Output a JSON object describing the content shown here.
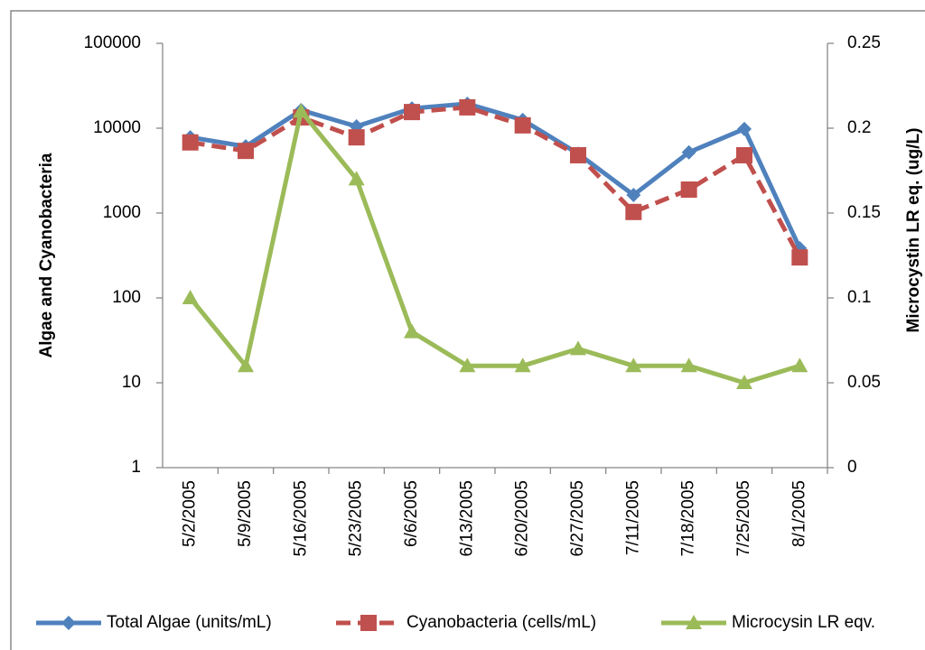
{
  "chart_data": {
    "type": "line",
    "y_label": "Algae and Cyanobacteria",
    "y2_label": "Microcystin LR eq. (ug/L)",
    "categories": [
      "5/2/2005",
      "5/9/2005",
      "5/16/2005",
      "5/23/2005",
      "6/6/2005",
      "6/13/2005",
      "6/20/2005",
      "6/27/2005",
      "7/11/2005",
      "7/18/2005",
      "7/25/2005",
      "8/1/2005"
    ],
    "series": [
      {
        "name": "Total Algae (units/mL)",
        "color": "#4f81bd",
        "marker": "diamond",
        "dash": false,
        "values": [
          7800,
          6100,
          16300,
          10500,
          17100,
          19400,
          12500,
          5000,
          1630,
          5200,
          9800,
          385
        ]
      },
      {
        "name": "Cyanobacteria (cells/mL)",
        "color": "#c0504d",
        "marker": "square",
        "dash": true,
        "values": [
          6800,
          5400,
          13400,
          7800,
          15500,
          17600,
          10800,
          4800,
          1030,
          1890,
          4800,
          300
        ]
      },
      {
        "name": "Microcysin LR eqv.",
        "color": "#9bbb59",
        "marker": "triangle",
        "dash": false,
        "axis": "y2",
        "values": [
          0.1,
          0.06,
          0.21,
          0.17,
          0.08,
          0.06,
          0.06,
          0.07,
          0.06,
          0.06,
          0.05,
          0.06
        ]
      }
    ],
    "yscale": "log",
    "ylim": [
      1,
      100000
    ],
    "yticks": [
      1,
      10,
      100,
      1000,
      10000,
      100000
    ],
    "y2lim": [
      0,
      0.25
    ],
    "y2ticks": [
      0,
      0.05,
      0.1,
      0.15,
      0.2,
      0.25
    ],
    "grid": false,
    "legend": "bottom"
  }
}
